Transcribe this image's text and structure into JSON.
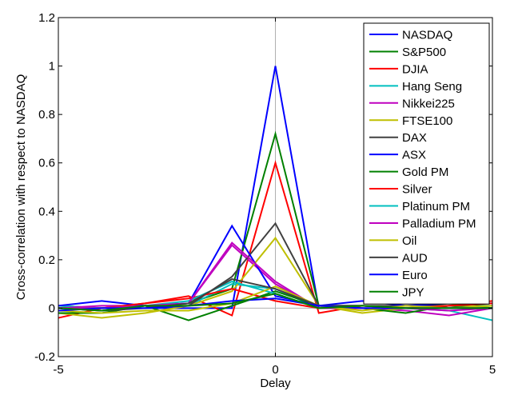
{
  "chart_data": {
    "type": "line",
    "xlabel": "Delay",
    "ylabel": "Cross-correlation with respect to NASDAQ",
    "xlim": [
      -5,
      5
    ],
    "ylim": [
      -0.2,
      1.2
    ],
    "xticks": [
      -5,
      0,
      5
    ],
    "xtick_labels": [
      "-5",
      "0",
      "5"
    ],
    "yticks": [
      -0.2,
      0,
      0.2,
      0.4,
      0.6,
      0.8,
      1,
      1.2
    ],
    "ytick_labels": [
      "-0.2",
      "0",
      "0.2",
      "0.4",
      "0.6",
      "0.8",
      "1",
      "1.2"
    ],
    "grid": "zero-lines",
    "legend_position": "top-right",
    "x": [
      -5,
      -4,
      -3,
      -2,
      -1,
      0,
      1,
      2,
      3,
      4,
      5
    ],
    "series": [
      {
        "name": "NASDAQ",
        "color": "#0000ff",
        "values": [
          0.0,
          0.0,
          0.0,
          0.0,
          0.0,
          1.0,
          0.0,
          0.0,
          0.0,
          0.0,
          0.0
        ]
      },
      {
        "name": "S&P500",
        "color": "#008000",
        "values": [
          0.01,
          0.0,
          0.01,
          0.02,
          0.08,
          0.72,
          0.01,
          0.01,
          0.0,
          0.01,
          0.01
        ]
      },
      {
        "name": "DJIA",
        "color": "#ff0000",
        "values": [
          -0.04,
          0.0,
          0.02,
          0.05,
          -0.03,
          0.6,
          -0.02,
          0.01,
          0.0,
          0.01,
          0.03
        ]
      },
      {
        "name": "Hang Seng",
        "color": "#00bfbf",
        "values": [
          0.01,
          0.0,
          0.0,
          0.01,
          0.1,
          0.08,
          0.0,
          0.0,
          0.0,
          -0.01,
          -0.05
        ]
      },
      {
        "name": "Nikkei225",
        "color": "#bf00bf",
        "values": [
          0.0,
          0.01,
          0.01,
          0.02,
          0.26,
          0.1,
          0.0,
          0.0,
          -0.01,
          -0.03,
          0.0
        ]
      },
      {
        "name": "FTSE100",
        "color": "#bfbf00",
        "values": [
          -0.02,
          -0.04,
          -0.02,
          0.01,
          0.07,
          0.29,
          0.01,
          -0.02,
          0.0,
          0.02,
          0.0
        ]
      },
      {
        "name": "DAX",
        "color": "#404040",
        "values": [
          0.0,
          -0.01,
          0.01,
          0.01,
          0.13,
          0.35,
          0.01,
          0.01,
          0.01,
          0.01,
          0.0
        ]
      },
      {
        "name": "ASX",
        "color": "#0000ff",
        "values": [
          0.01,
          0.03,
          0.01,
          0.02,
          0.34,
          0.05,
          0.01,
          0.03,
          0.01,
          0.02,
          0.02
        ]
      },
      {
        "name": "Gold PM",
        "color": "#008000",
        "values": [
          -0.02,
          -0.02,
          0.01,
          -0.05,
          0.01,
          0.07,
          0.01,
          0.0,
          -0.02,
          0.01,
          0.0
        ]
      },
      {
        "name": "Silver",
        "color": "#ff0000",
        "values": [
          0.0,
          0.0,
          0.02,
          0.04,
          0.08,
          0.03,
          0.0,
          0.01,
          0.0,
          0.01,
          0.02
        ]
      },
      {
        "name": "Platinum PM",
        "color": "#00bfbf",
        "values": [
          0.0,
          0.0,
          0.01,
          0.03,
          0.11,
          0.06,
          0.0,
          0.01,
          0.0,
          0.0,
          0.01
        ]
      },
      {
        "name": "Palladium PM",
        "color": "#bf00bf",
        "values": [
          0.0,
          0.0,
          0.01,
          0.02,
          0.27,
          0.11,
          0.0,
          0.0,
          0.0,
          -0.01,
          0.0
        ]
      },
      {
        "name": "Oil",
        "color": "#bfbf00",
        "values": [
          -0.01,
          -0.02,
          -0.01,
          -0.01,
          0.02,
          0.09,
          0.01,
          -0.01,
          0.01,
          0.0,
          0.01
        ]
      },
      {
        "name": "AUD",
        "color": "#404040",
        "values": [
          0.0,
          -0.01,
          0.0,
          0.02,
          0.12,
          0.08,
          0.01,
          0.01,
          0.0,
          0.0,
          0.0
        ]
      },
      {
        "name": "Euro",
        "color": "#0000ff",
        "values": [
          -0.01,
          0.0,
          0.0,
          0.01,
          0.03,
          0.04,
          0.01,
          0.0,
          0.0,
          0.0,
          0.0
        ]
      },
      {
        "name": "JPY",
        "color": "#008000",
        "values": [
          0.0,
          -0.01,
          0.01,
          0.01,
          0.02,
          0.06,
          0.0,
          0.01,
          0.0,
          0.0,
          0.0
        ]
      }
    ]
  }
}
